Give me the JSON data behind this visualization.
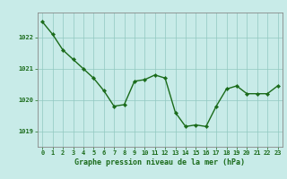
{
  "x": [
    0,
    1,
    2,
    3,
    4,
    5,
    6,
    7,
    8,
    9,
    10,
    11,
    12,
    13,
    14,
    15,
    16,
    17,
    18,
    19,
    20,
    21,
    22,
    23
  ],
  "y": [
    1022.5,
    1022.1,
    1021.6,
    1021.3,
    1021.0,
    1020.7,
    1020.3,
    1019.8,
    1019.85,
    1020.6,
    1020.65,
    1020.8,
    1020.7,
    1019.6,
    1019.15,
    1019.2,
    1019.15,
    1019.8,
    1020.35,
    1020.45,
    1020.2,
    1020.2,
    1020.2,
    1020.45
  ],
  "line_color": "#1a6b1a",
  "marker_color": "#1a6b1a",
  "bg_color": "#c8ebe8",
  "grid_color": "#90c8c0",
  "axis_color": "#888888",
  "xlabel": "Graphe pression niveau de la mer (hPa)",
  "xlabel_color": "#1a6b1a",
  "ylim": [
    1018.5,
    1022.8
  ],
  "yticks": [
    1019,
    1020,
    1021,
    1022
  ],
  "xticks": [
    0,
    1,
    2,
    3,
    4,
    5,
    6,
    7,
    8,
    9,
    10,
    11,
    12,
    13,
    14,
    15,
    16,
    17,
    18,
    19,
    20,
    21,
    22,
    23
  ],
  "tick_label_color": "#1a6b1a",
  "tick_label_size": 5.0,
  "xlabel_size": 6.0,
  "line_width": 1.0,
  "marker_size": 2.2
}
